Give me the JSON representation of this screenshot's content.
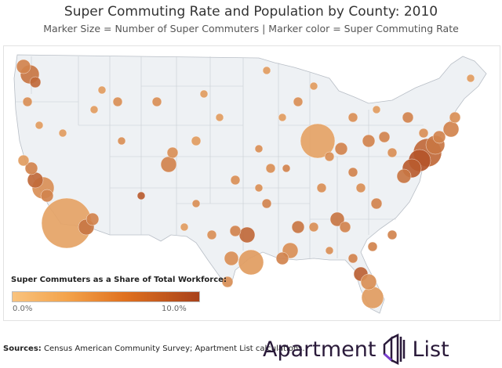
{
  "title": "Super Commuting Rate and Population by County: 2010",
  "subtitle": "Marker Size = Number of Super Commuters  |  Marker color = Super Commuting Rate",
  "legend": {
    "title": "Super Commuters as a Share of Total Workforce:",
    "min_label": "0.0%",
    "max_label": "10.0%",
    "min_value": 0.0,
    "max_value": 10.0,
    "color_low": "#f9c37e",
    "color_high": "#a8421b"
  },
  "map": {
    "land_color": "#eef1f4",
    "border_color": "#b8bec6"
  },
  "footer": {
    "sources_label": "Sources:",
    "sources_text": " Census American Community Survey; Apartment List calculations."
  },
  "logo": {
    "text_left": "Apartment",
    "text_right": "List",
    "icon": "building-icon",
    "color": "#2a1a3a",
    "accent": "#7a3fd0"
  }
}
